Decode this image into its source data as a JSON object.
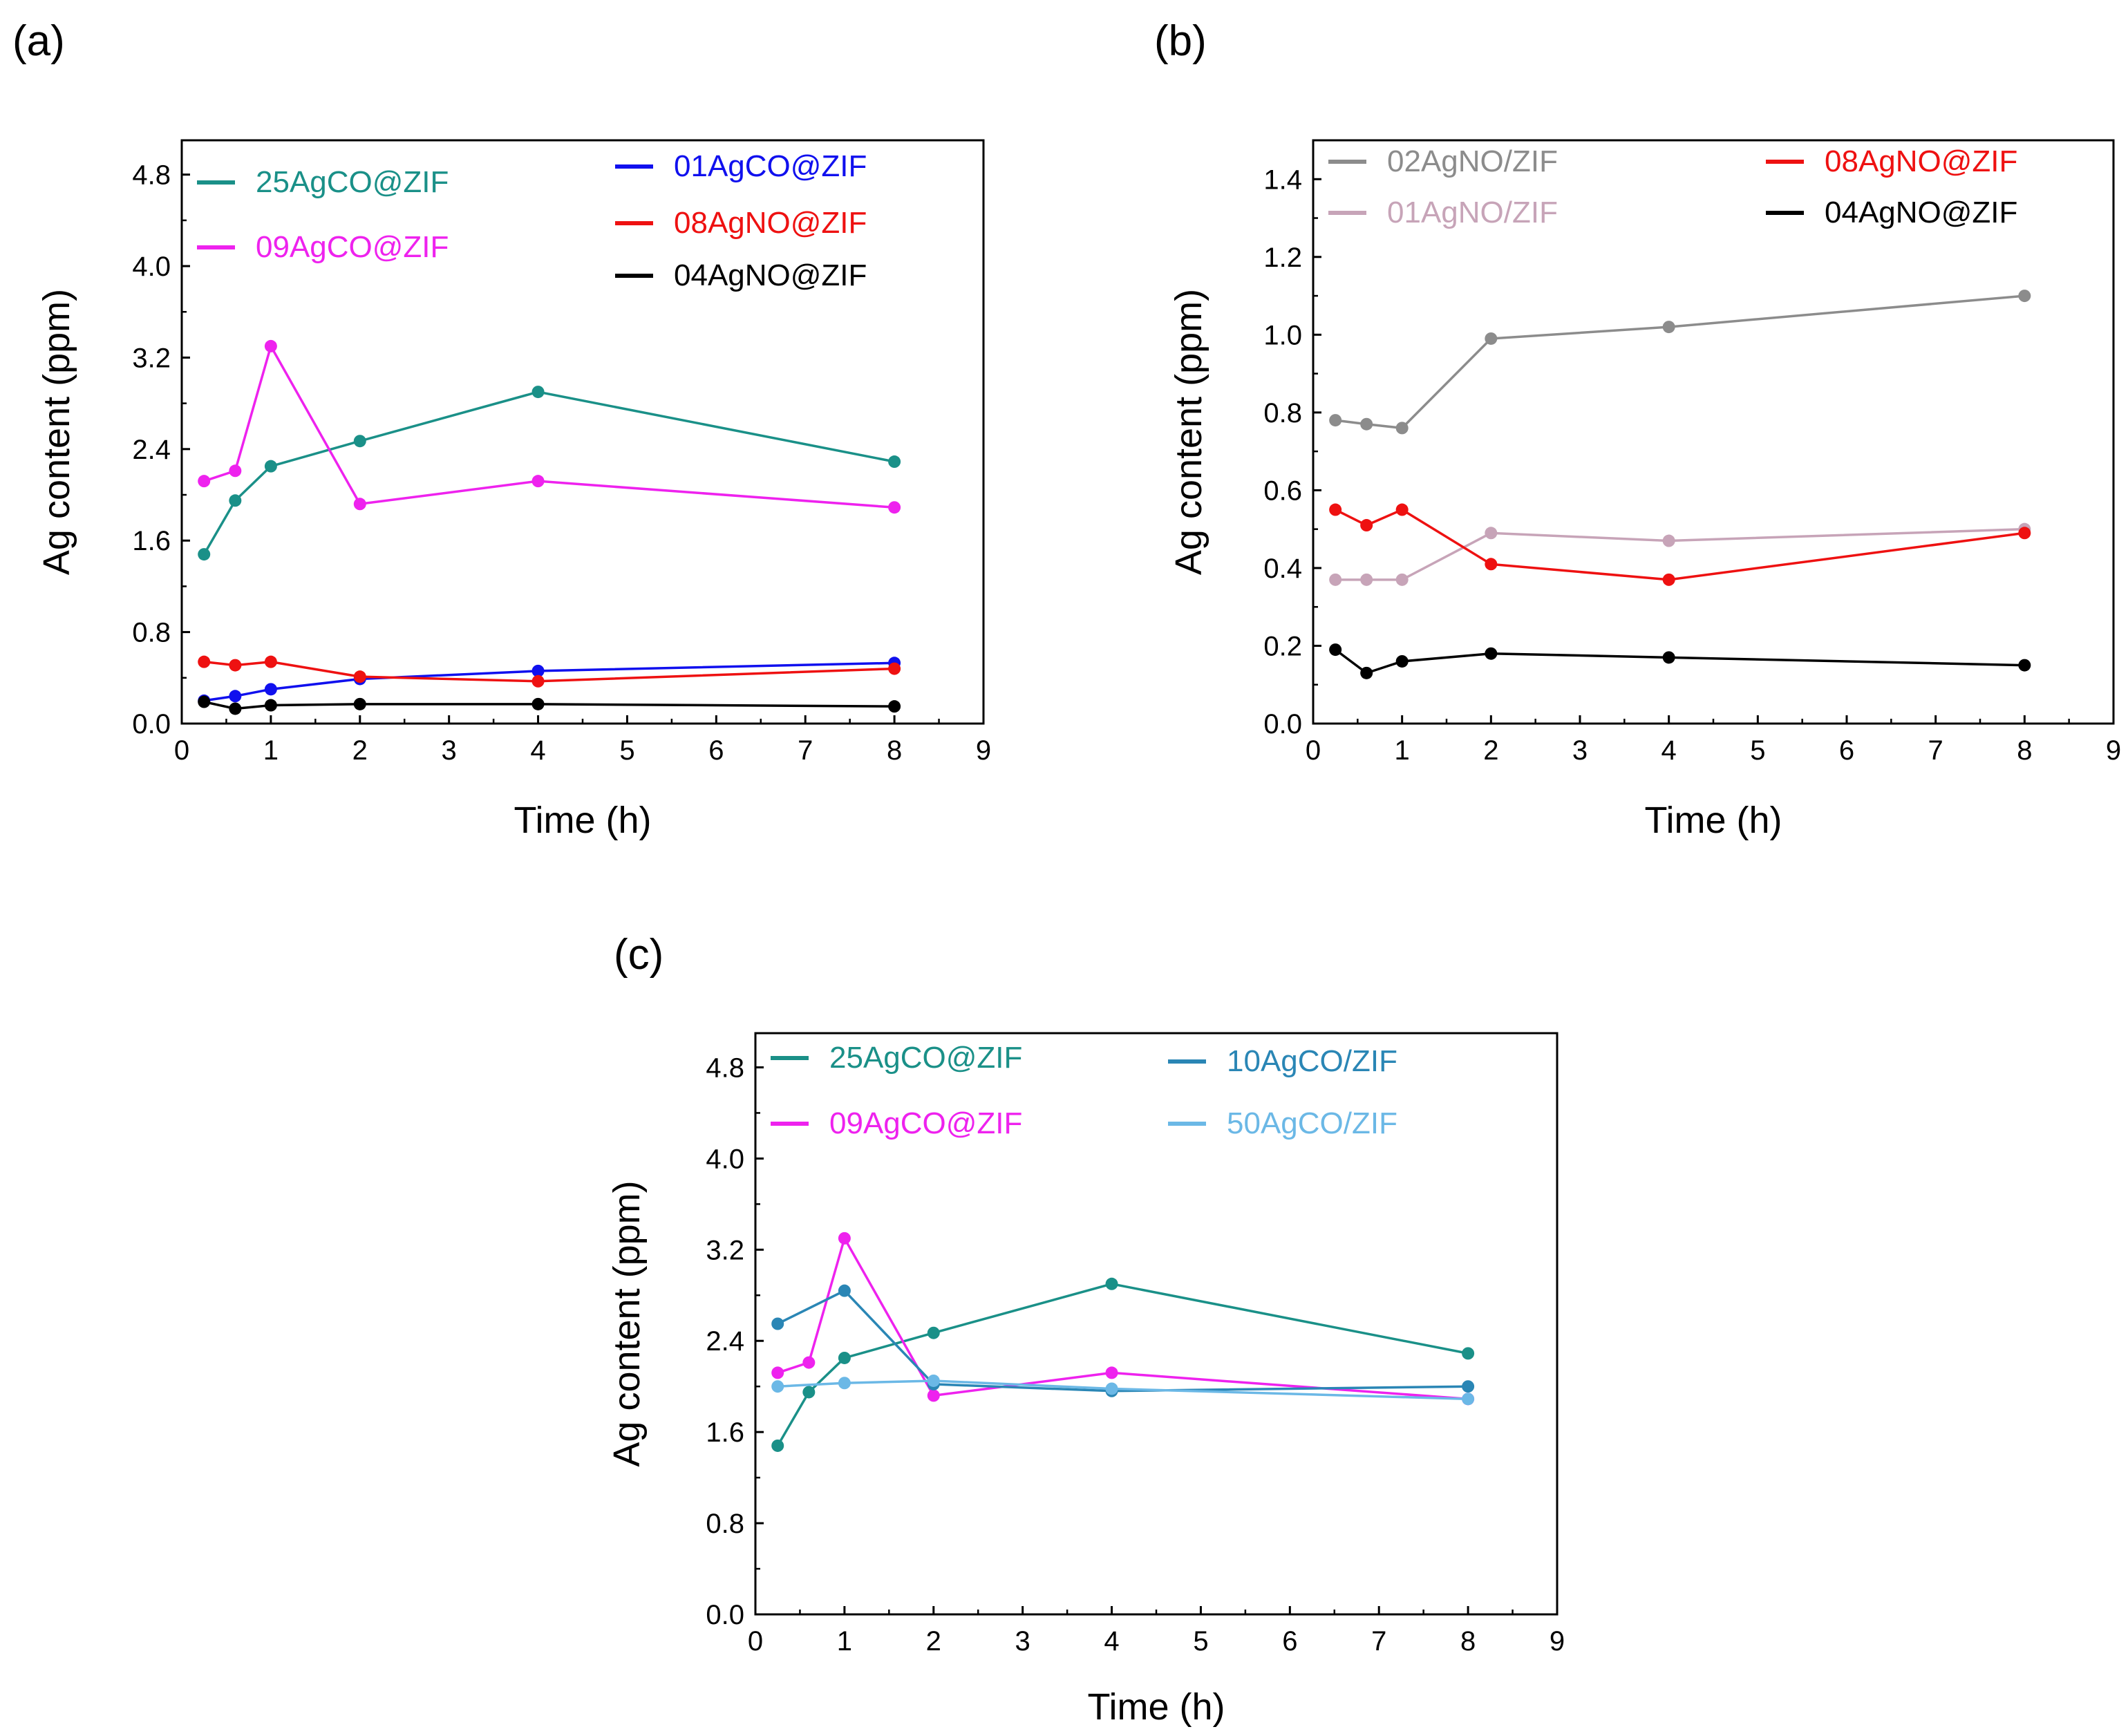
{
  "chart_data": [
    {
      "type": "line",
      "panel_label": "(a)",
      "xlabel": "Time (h)",
      "ylabel": "Ag content (ppm)",
      "xlim": [
        0,
        9
      ],
      "ylim": [
        0,
        5.1
      ],
      "xticks": [
        "0",
        "1",
        "2",
        "3",
        "4",
        "5",
        "6",
        "7",
        "8",
        "9"
      ],
      "yticks": [
        "0.0",
        "0.8",
        "1.6",
        "2.4",
        "3.2",
        "4.0",
        "4.8"
      ],
      "x": [
        0.25,
        0.6,
        1,
        2,
        4,
        8
      ],
      "series": [
        {
          "name": "25AgCO@ZIF",
          "color": "#1a9088",
          "values": [
            1.48,
            1.95,
            2.25,
            2.47,
            2.9,
            2.29
          ]
        },
        {
          "name": "09AgCO@ZIF",
          "color": "#ee22ee",
          "values": [
            2.12,
            2.21,
            3.3,
            1.92,
            2.12,
            1.89
          ]
        },
        {
          "name": "01AgCO@ZIF",
          "color": "#1010ee",
          "values": [
            0.2,
            0.24,
            0.3,
            0.39,
            0.46,
            0.53
          ]
        },
        {
          "name": "08AgNO@ZIF",
          "color": "#ee1111",
          "values": [
            0.54,
            0.51,
            0.54,
            0.41,
            0.37,
            0.48
          ]
        },
        {
          "name": "04AgNO@ZIF",
          "color": "#000000",
          "values": [
            0.19,
            0.13,
            0.16,
            0.17,
            0.17,
            0.15
          ]
        }
      ]
    },
    {
      "type": "line",
      "panel_label": "(b)",
      "xlabel": "Time (h)",
      "ylabel": "Ag content (ppm)",
      "xlim": [
        0,
        9
      ],
      "ylim": [
        0,
        1.5
      ],
      "xticks": [
        "0",
        "1",
        "2",
        "3",
        "4",
        "5",
        "6",
        "7",
        "8",
        "9"
      ],
      "yticks": [
        "0.0",
        "0.2",
        "0.4",
        "0.6",
        "0.8",
        "1.0",
        "1.2",
        "1.4"
      ],
      "x": [
        0.25,
        0.6,
        1,
        2,
        4,
        8
      ],
      "series": [
        {
          "name": "02AgNO/ZIF",
          "color": "#8c8c8c",
          "values": [
            0.78,
            0.77,
            0.76,
            0.99,
            1.02,
            1.1
          ]
        },
        {
          "name": "01AgNO/ZIF",
          "color": "#c7a4b8",
          "values": [
            0.37,
            0.37,
            0.37,
            0.49,
            0.47,
            0.5
          ]
        },
        {
          "name": "08AgNO@ZIF",
          "color": "#ee1111",
          "values": [
            0.55,
            0.51,
            0.55,
            0.41,
            0.37,
            0.49
          ]
        },
        {
          "name": "04AgNO@ZIF",
          "color": "#000000",
          "values": [
            0.19,
            0.13,
            0.16,
            0.18,
            0.17,
            0.15
          ]
        }
      ]
    },
    {
      "type": "line",
      "panel_label": "(c)",
      "xlabel": "Time (h)",
      "ylabel": "Ag content (ppm)",
      "xlim": [
        0,
        9
      ],
      "ylim": [
        0,
        5.1
      ],
      "xticks": [
        "0",
        "1",
        "2",
        "3",
        "4",
        "5",
        "6",
        "7",
        "8",
        "9"
      ],
      "yticks": [
        "0.0",
        "0.8",
        "1.6",
        "2.4",
        "3.2",
        "4.0",
        "4.8"
      ],
      "x": [
        0.25,
        0.6,
        1,
        2,
        4,
        8
      ],
      "series": [
        {
          "name": "25AgCO@ZIF",
          "color": "#1a9088",
          "values": [
            1.48,
            1.95,
            2.25,
            2.47,
            2.9,
            2.29
          ]
        },
        {
          "name": "09AgCO@ZIF",
          "color": "#ee22ee",
          "values": [
            2.12,
            2.21,
            3.3,
            1.92,
            2.12,
            1.89
          ]
        },
        {
          "name": "10AgCO/ZIF",
          "color": "#2a86b5",
          "x": [
            0.25,
            1,
            2,
            4,
            8
          ],
          "values": [
            2.55,
            2.84,
            2.02,
            1.96,
            2.0
          ]
        },
        {
          "name": "50AgCO/ZIF",
          "color": "#6bb8e6",
          "x": [
            0.25,
            1,
            2,
            4,
            8
          ],
          "values": [
            2.0,
            2.03,
            2.05,
            1.98,
            1.89
          ]
        }
      ]
    }
  ]
}
